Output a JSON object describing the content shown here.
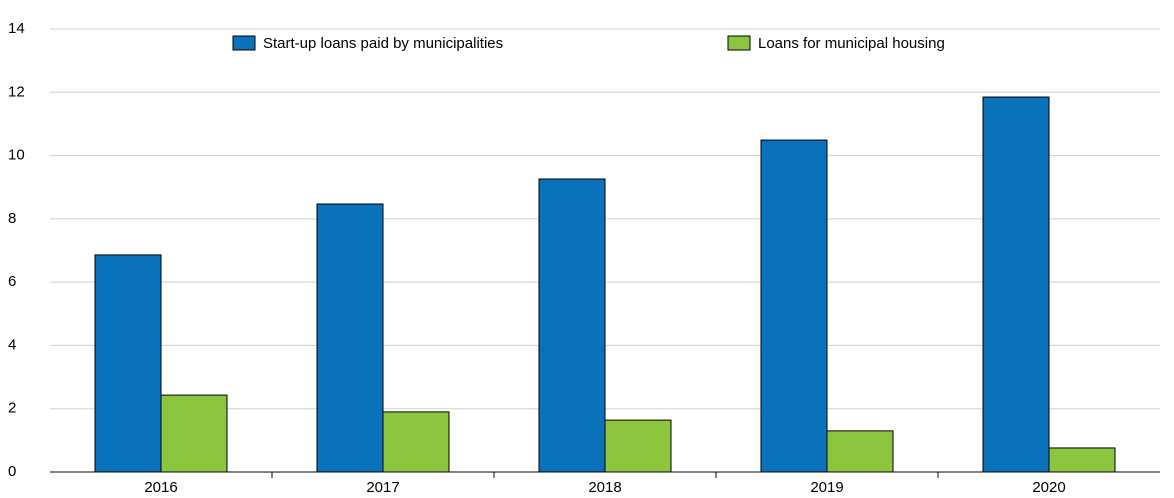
{
  "chart_data": {
    "type": "bar",
    "categories": [
      "2016",
      "2017",
      "2018",
      "2019",
      "2020"
    ],
    "series": [
      {
        "name": "Start-up loans paid by municipalities",
        "color": "#0a72ba",
        "values": [
          6.86,
          8.47,
          9.26,
          10.49,
          11.85
        ]
      },
      {
        "name": "Loans for municipal housing",
        "color": "#8cc63f",
        "values": [
          2.43,
          1.9,
          1.64,
          1.3,
          0.76
        ]
      }
    ],
    "ylim": [
      0,
      14
    ],
    "yticks": [
      0,
      2,
      4,
      6,
      8,
      10,
      12,
      14
    ],
    "grid": true
  }
}
